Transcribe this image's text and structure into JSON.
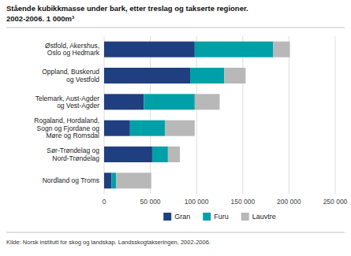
{
  "chart_data": {
    "type": "bar",
    "orientation": "horizontal",
    "stacked": true,
    "title": "Stående kubikkmasse under bark, etter treslag og takserte regioner.",
    "subtitle": "2002-2006. 1 000m³",
    "annotations": [
      "Kilde: Norsk institutt for skog og landskap. Landsskogtakseringen, 2002-2006."
    ],
    "categories": [
      "Østfold, Akershus,\nOslo og Hedmark",
      "Oppland, Buskerud\nog Vestfold",
      "Telemark, Aust-Agder\nog Vest-Agder",
      "Rogaland, Hordaland,\nSogn og Fjordane og\nMøre og Romsdal",
      "Sør-Trøndelag og\nNord-Trøndelag",
      "Nordland og Troms"
    ],
    "series": [
      {
        "name": "Gran",
        "color": "#1f3f80",
        "values": [
          98000,
          93000,
          43000,
          28000,
          52000,
          8000
        ]
      },
      {
        "name": "Furu",
        "color": "#00a0a8",
        "values": [
          85000,
          37000,
          55000,
          38000,
          17000,
          5000
        ]
      },
      {
        "name": "Lauvtre",
        "color": "#b8b8b8",
        "values": [
          18000,
          23000,
          27000,
          32000,
          13000,
          38000
        ]
      }
    ],
    "xlim": [
      0,
      250000
    ],
    "xticks": [
      0,
      {
        "value": 50000,
        "label": "50 000"
      },
      {
        "value": 100000,
        "label": "100 000"
      },
      {
        "value": 150000,
        "label": "150 000"
      },
      {
        "value": 200000,
        "label": "200 000"
      },
      {
        "value": 250000,
        "label": "250 000"
      }
    ],
    "grid": true,
    "legend": "bottom"
  }
}
